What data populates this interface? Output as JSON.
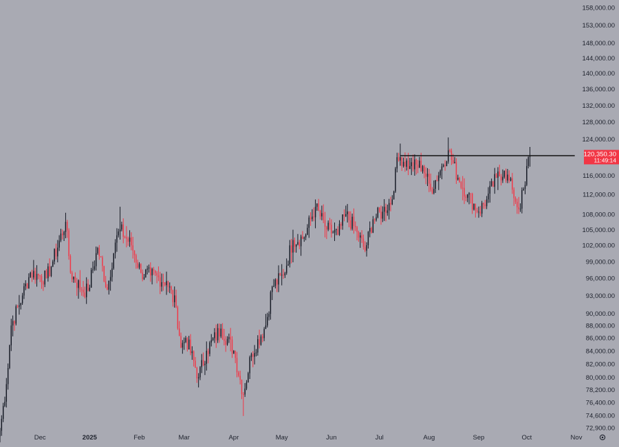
{
  "chart_data": {
    "type": "candlestick",
    "scale": "log",
    "ylim": [
      72000,
      160000
    ],
    "y_ticks": [
      {
        "v": 158000,
        "label": "158,000.00"
      },
      {
        "v": 153000,
        "label": "153,000.00"
      },
      {
        "v": 148000,
        "label": "148,000.00"
      },
      {
        "v": 144000,
        "label": "144,000.00"
      },
      {
        "v": 140000,
        "label": "140,000.00"
      },
      {
        "v": 136000,
        "label": "136,000.00"
      },
      {
        "v": 132000,
        "label": "132,000.00"
      },
      {
        "v": 128000,
        "label": "128,000.00"
      },
      {
        "v": 124000,
        "label": "124,000.00"
      },
      {
        "v": 116000,
        "label": "116,000.00"
      },
      {
        "v": 112000,
        "label": "112,000.00"
      },
      {
        "v": 108000,
        "label": "108,000.00"
      },
      {
        "v": 105000,
        "label": "105,000.00"
      },
      {
        "v": 102000,
        "label": "102,000.00"
      },
      {
        "v": 99000,
        "label": "99,000.00"
      },
      {
        "v": 96000,
        "label": "96,000.00"
      },
      {
        "v": 93000,
        "label": "93,000.00"
      },
      {
        "v": 90000,
        "label": "90,000.00"
      },
      {
        "v": 88000,
        "label": "88,000.00"
      },
      {
        "v": 86000,
        "label": "86,000.00"
      },
      {
        "v": 84000,
        "label": "84,000.00"
      },
      {
        "v": 82000,
        "label": "82,000.00"
      },
      {
        "v": 80000,
        "label": "80,000.00"
      },
      {
        "v": 78200,
        "label": "78,200.00"
      },
      {
        "v": 76400,
        "label": "76,400.00"
      },
      {
        "v": 74600,
        "label": "74,600.00"
      },
      {
        "v": 72900,
        "label": "72,900.00"
      }
    ],
    "x_ticks": [
      {
        "date": "2024-12-01",
        "label": "Dec",
        "bold": false
      },
      {
        "date": "2025-01-01",
        "label": "2025",
        "bold": true
      },
      {
        "date": "2025-02-01",
        "label": "Feb",
        "bold": false
      },
      {
        "date": "2025-03-01",
        "label": "Mar",
        "bold": false
      },
      {
        "date": "2025-04-01",
        "label": "Apr",
        "bold": false
      },
      {
        "date": "2025-05-01",
        "label": "May",
        "bold": false
      },
      {
        "date": "2025-06-01",
        "label": "Jun",
        "bold": false
      },
      {
        "date": "2025-07-01",
        "label": "Jul",
        "bold": false
      },
      {
        "date": "2025-08-01",
        "label": "Aug",
        "bold": false
      },
      {
        "date": "2025-09-01",
        "label": "Sep",
        "bold": false
      },
      {
        "date": "2025-10-01",
        "label": "Oct",
        "bold": false
      },
      {
        "date": "2025-11-01",
        "label": "Nov",
        "bold": false
      }
    ],
    "x_range": [
      "2024-11-06",
      "2025-11-01"
    ],
    "price_key_points": [
      [
        "2024-11-06",
        72500
      ],
      [
        "2024-11-10",
        79000
      ],
      [
        "2024-11-13",
        88000
      ],
      [
        "2024-11-20",
        93000
      ],
      [
        "2024-11-25",
        97000
      ],
      [
        "2024-11-30",
        96500
      ],
      [
        "2024-12-05",
        96000
      ],
      [
        "2024-12-09",
        99000
      ],
      [
        "2024-12-17",
        106500
      ],
      [
        "2024-12-20",
        97000
      ],
      [
        "2024-12-27",
        94000
      ],
      [
        "2024-12-31",
        93800
      ],
      [
        "2025-01-06",
        101500
      ],
      [
        "2025-01-12",
        94000
      ],
      [
        "2025-01-17",
        102500
      ],
      [
        "2025-01-20",
        105000
      ],
      [
        "2025-01-27",
        102000
      ],
      [
        "2025-02-02",
        97000
      ],
      [
        "2025-02-08",
        96500
      ],
      [
        "2025-02-18",
        95500
      ],
      [
        "2025-02-24",
        91000
      ],
      [
        "2025-02-27",
        84500
      ],
      [
        "2025-03-02",
        86000
      ],
      [
        "2025-03-10",
        80000
      ],
      [
        "2025-03-15",
        84000
      ],
      [
        "2025-03-24",
        87500
      ],
      [
        "2025-04-01",
        84000
      ],
      [
        "2025-04-07",
        77500
      ],
      [
        "2025-04-12",
        83500
      ],
      [
        "2025-04-21",
        88000
      ],
      [
        "2025-04-25",
        94500
      ],
      [
        "2025-05-02",
        96500
      ],
      [
        "2025-05-08",
        103000
      ],
      [
        "2025-05-15",
        103500
      ],
      [
        "2025-05-22",
        109500
      ],
      [
        "2025-05-29",
        105000
      ],
      [
        "2025-06-05",
        104000
      ],
      [
        "2025-06-10",
        108000
      ],
      [
        "2025-06-17",
        104500
      ],
      [
        "2025-06-22",
        101000
      ],
      [
        "2025-06-27",
        107000
      ],
      [
        "2025-07-03",
        108500
      ],
      [
        "2025-07-09",
        111000
      ],
      [
        "2025-07-11",
        117500
      ],
      [
        "2025-07-14",
        120000
      ],
      [
        "2025-07-20",
        118000
      ],
      [
        "2025-07-28",
        118000
      ],
      [
        "2025-08-02",
        113000
      ],
      [
        "2025-08-08",
        117000
      ],
      [
        "2025-08-13",
        121500
      ],
      [
        "2025-08-19",
        115500
      ],
      [
        "2025-08-25",
        112000
      ],
      [
        "2025-09-01",
        108500
      ],
      [
        "2025-09-06",
        111000
      ],
      [
        "2025-09-12",
        115500
      ],
      [
        "2025-09-17",
        117000
      ],
      [
        "2025-09-22",
        113000
      ],
      [
        "2025-09-26",
        109000
      ],
      [
        "2025-09-30",
        114000
      ],
      [
        "2025-10-02",
        120000
      ],
      [
        "2025-10-03",
        120350.3
      ]
    ],
    "extremes": [
      {
        "date": "2024-12-17",
        "high": 108300
      },
      {
        "date": "2025-01-20",
        "high": 109500
      },
      {
        "date": "2025-04-07",
        "low": 74500
      },
      {
        "date": "2025-07-14",
        "high": 123000
      },
      {
        "date": "2025-08-13",
        "high": 124400
      },
      {
        "date": "2025-09-01",
        "low": 107300
      }
    ],
    "resistance_line": {
      "value": 120300,
      "from": "2025-07-14",
      "to": "2025-10-31",
      "color": "#1a1a1a"
    },
    "current_price": {
      "label": "120,350.30",
      "sublabel": "11:49:14",
      "value": 120350.3,
      "color": "#f23645"
    },
    "colors": {
      "up": "#131722",
      "down": "#f23645",
      "background": "#a9aab3",
      "axis_text": "#1e222d"
    }
  },
  "settings_icon": "gear-icon"
}
